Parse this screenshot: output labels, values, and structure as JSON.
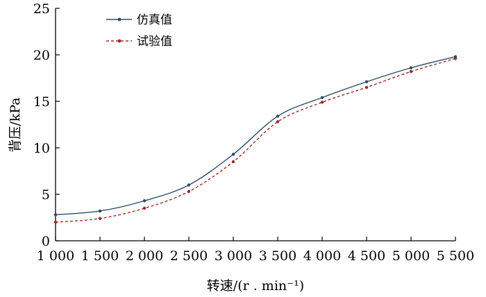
{
  "chart_data": {
    "type": "line",
    "xlabel": "转速/(r . min⁻¹)",
    "ylabel": "背压/kPa",
    "x": [
      1000,
      1500,
      2000,
      2500,
      3000,
      3500,
      4000,
      4500,
      5000,
      5500
    ],
    "x_tick_labels": [
      "1 000",
      "1 500",
      "2 000",
      "2 500",
      "3 000",
      "3 500",
      "4 000",
      "4 500",
      "5 000",
      "5 500"
    ],
    "xlim": [
      1000,
      5500
    ],
    "ylim": [
      0,
      25
    ],
    "y_ticks": [
      0,
      5,
      10,
      15,
      20,
      25
    ],
    "grid": false,
    "legend_position": "top-left",
    "series": [
      {
        "name": "仿真值",
        "style": "solid",
        "color": "#2d4a6b",
        "values": [
          2.8,
          3.2,
          4.3,
          6.0,
          9.3,
          13.4,
          15.4,
          17.1,
          18.6,
          19.8
        ]
      },
      {
        "name": "试验值",
        "style": "dashed",
        "color": "#9b2a2a",
        "values": [
          2.0,
          2.4,
          3.5,
          5.3,
          8.5,
          12.8,
          14.9,
          16.5,
          18.2,
          19.6
        ]
      }
    ]
  }
}
